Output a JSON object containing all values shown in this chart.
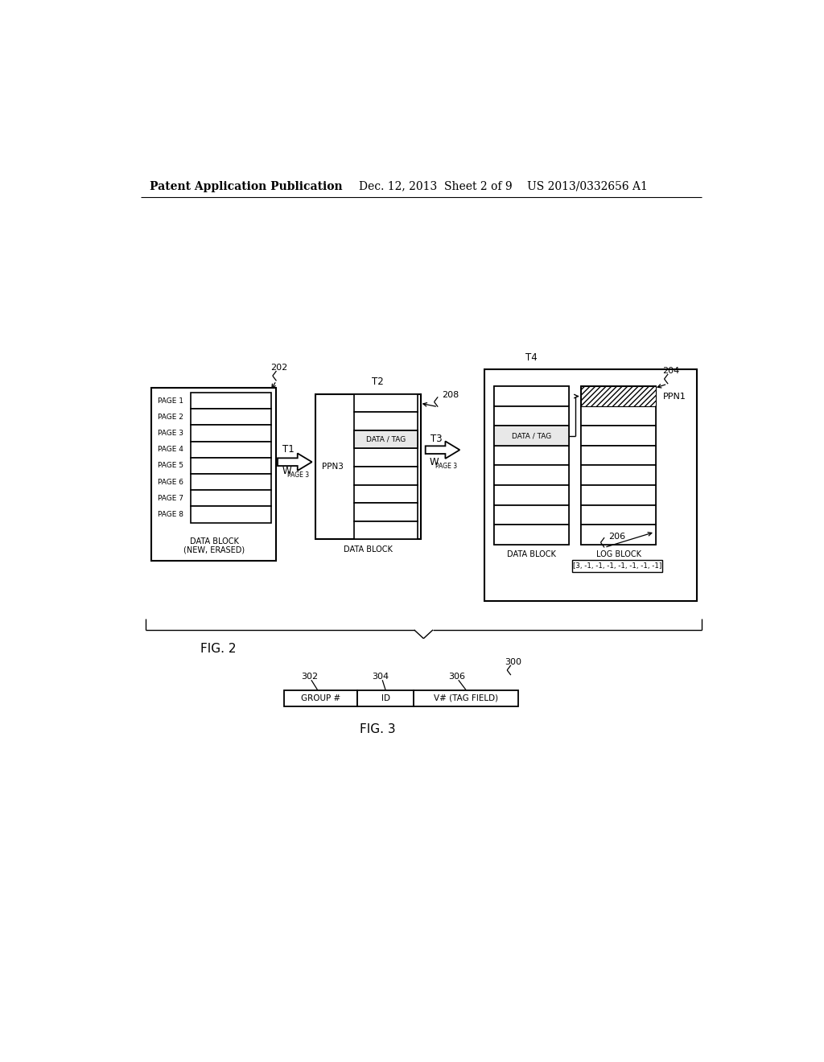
{
  "bg_color": "#ffffff",
  "header_left": "Patent Application Publication",
  "header_center": "Dec. 12, 2013  Sheet 2 of 9",
  "header_right": "US 2013/0332656 A1",
  "fig2_label": "FIG. 2",
  "fig3_label": "FIG. 3",
  "ref202": "202",
  "ref204": "204",
  "ref206": "206",
  "ref208": "208",
  "ref300": "300",
  "ref302": "302",
  "ref304": "304",
  "ref306": "306"
}
